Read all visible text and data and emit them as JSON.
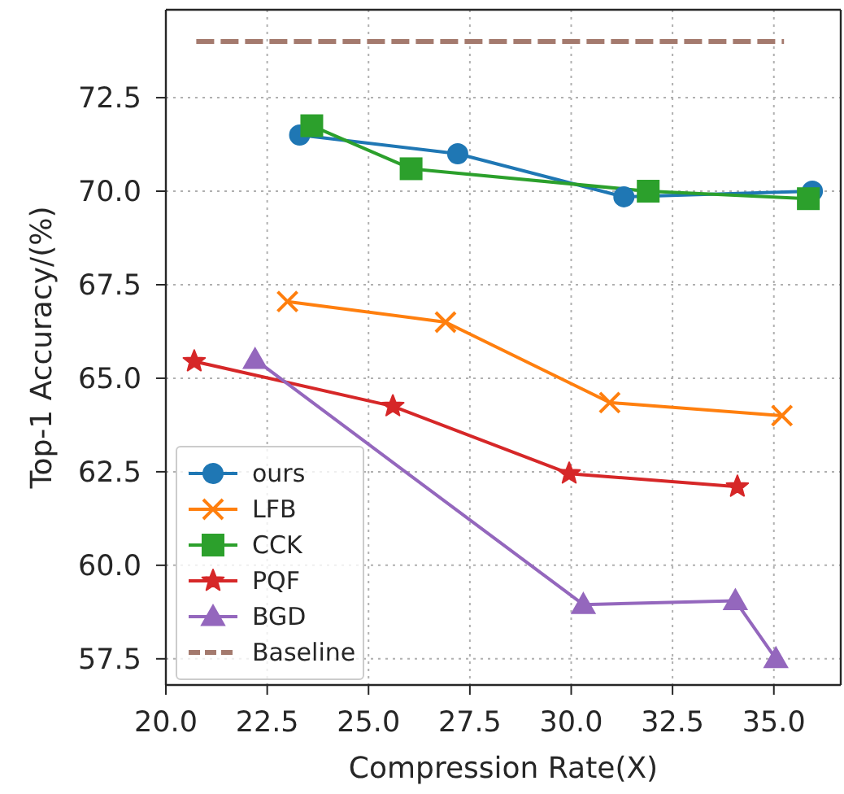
{
  "chart_data": {
    "type": "line",
    "xlabel": "Compression Rate(X)",
    "ylabel": "Top-1 Accuracy/(%)",
    "xlim": [
      20,
      36.65
    ],
    "ylim": [
      56.8,
      74.85
    ],
    "xticks": [
      {
        "value": 20,
        "label": "20.0"
      },
      22.5,
      {
        "value": 25,
        "label": "25.0"
      },
      27.5,
      {
        "value": 30,
        "label": "30.0"
      },
      32.5,
      {
        "value": 35,
        "label": "35.0"
      }
    ],
    "yticks": [
      57.5,
      {
        "value": 60,
        "label": "60.0"
      },
      62.5,
      {
        "value": 65,
        "label": "65.0"
      },
      67.5,
      {
        "value": 70,
        "label": "70.0"
      },
      72.5
    ],
    "grid": true,
    "legend": "bottom left",
    "line_style": "solid",
    "series": [
      {
        "name": "ours",
        "color": "#1f77b4",
        "marker": "circle",
        "x": [
          23.3,
          27.2,
          31.3,
          35.95
        ],
        "values": [
          71.5,
          71.0,
          69.85,
          70.0
        ]
      },
      {
        "name": "LFB",
        "color": "#ff7f0e",
        "marker": "cross",
        "x": [
          23.0,
          26.9,
          30.95,
          35.2
        ],
        "values": [
          67.05,
          66.5,
          64.35,
          64.0
        ]
      },
      {
        "name": "CCK",
        "color": "#2ca02c",
        "marker": "square",
        "x": [
          23.6,
          26.05,
          31.9,
          35.85
        ],
        "values": [
          71.75,
          70.6,
          70.0,
          69.8
        ]
      },
      {
        "name": "PQF",
        "color": "#d62728",
        "marker": "star",
        "x": [
          20.7,
          25.6,
          29.95,
          34.1
        ],
        "values": [
          65.45,
          64.25,
          62.45,
          62.1
        ]
      },
      {
        "name": "BGD",
        "color": "#9467bd",
        "marker": "triangle",
        "x": [
          22.2,
          30.3,
          34.05,
          35.05
        ],
        "values": [
          65.5,
          58.95,
          59.05,
          57.5
        ]
      },
      {
        "name": "Baseline",
        "color": "#a47a6e",
        "marker": "none",
        "line_style": "dashed",
        "x": [
          20.75,
          35.25
        ],
        "values": [
          74.0,
          74.0
        ]
      }
    ]
  }
}
